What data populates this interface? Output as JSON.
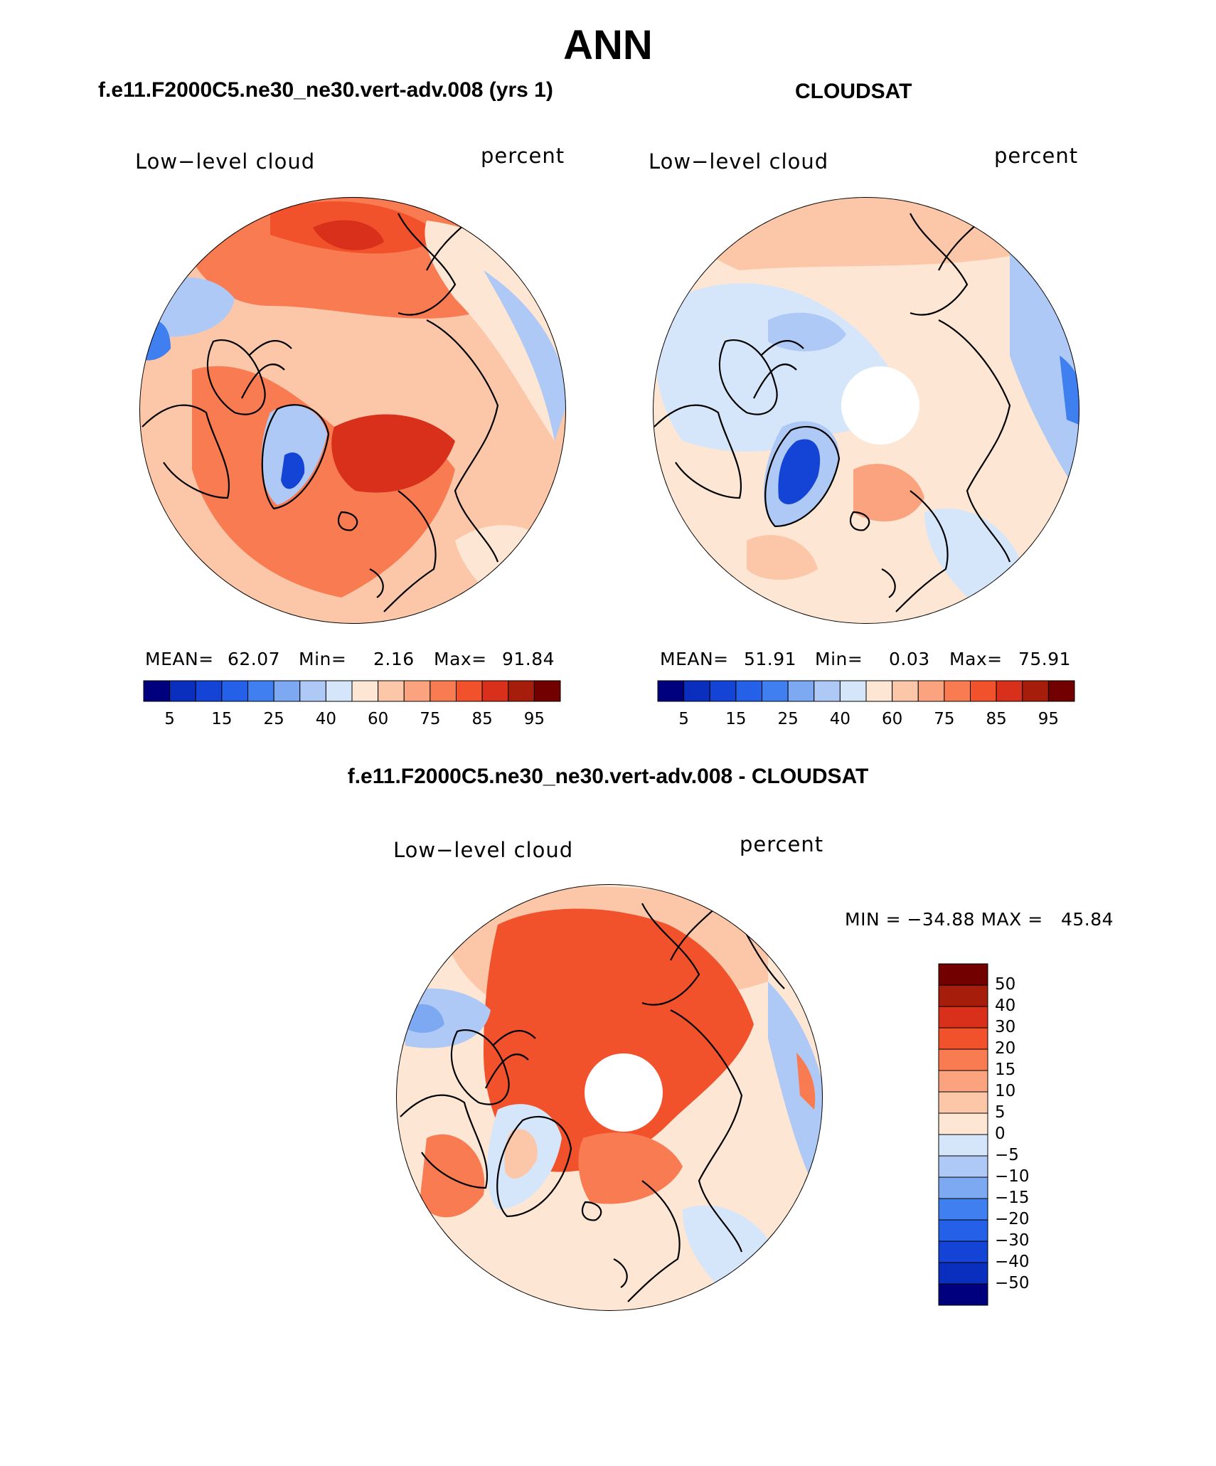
{
  "header": {
    "title": "ANN",
    "model_title": "f.e11.F2000C5.ne30_ne30.vert-adv.008 (yrs 1)",
    "obs_title": "CLOUDSAT",
    "diff_title": "f.e11.F2000C5.ne30_ne30.vert-adv.008 - CLOUDSAT"
  },
  "panels": {
    "model": {
      "variable": "Low−level cloud",
      "units": "percent",
      "mean_label": "MEAN=",
      "mean": "62.07",
      "min_label": "Min=",
      "min": "2.16",
      "max_label": "Max=",
      "max": "91.84"
    },
    "obs": {
      "variable": "Low−level cloud",
      "units": "percent",
      "mean_label": "MEAN=",
      "mean": "51.91",
      "min_label": "Min=",
      "min": "0.03",
      "max_label": "Max=",
      "max": "75.91"
    },
    "diff": {
      "variable": "Low−level cloud",
      "units": "percent",
      "minmax_text": "MIN = −34.88 MAX =   45.84"
    }
  },
  "chart_data": [
    {
      "type": "heatmap",
      "projection": "north-polar-stereographic",
      "title": "f.e11.F2000C5.ne30_ne30.vert-adv.008 (yrs 1)",
      "field": "Low-level cloud",
      "units": "percent",
      "mean": 62.07,
      "min": 2.16,
      "max": 91.84,
      "colorbar_levels": [
        5,
        10,
        15,
        20,
        25,
        30,
        40,
        50,
        60,
        65,
        75,
        80,
        85,
        90,
        95
      ],
      "colorbar_tick_labels": [
        "5",
        "15",
        "25",
        "40",
        "60",
        "75",
        "85",
        "95"
      ]
    },
    {
      "type": "heatmap",
      "projection": "north-polar-stereographic",
      "title": "CLOUDSAT",
      "field": "Low-level cloud",
      "units": "percent",
      "mean": 51.91,
      "min": 0.03,
      "max": 75.91,
      "colorbar_levels": [
        5,
        10,
        15,
        20,
        25,
        30,
        40,
        50,
        60,
        65,
        75,
        80,
        85,
        90,
        95
      ],
      "colorbar_tick_labels": [
        "5",
        "15",
        "25",
        "40",
        "60",
        "75",
        "85",
        "95"
      ]
    },
    {
      "type": "heatmap",
      "projection": "north-polar-stereographic",
      "title": "f.e11.F2000C5.ne30_ne30.vert-adv.008 - CLOUDSAT",
      "field": "Low-level cloud",
      "units": "percent",
      "min": -34.88,
      "max": 45.84,
      "colorbar_levels": [
        50,
        40,
        30,
        20,
        15,
        10,
        5,
        0,
        -5,
        -10,
        -15,
        -20,
        -30,
        -40,
        -50
      ],
      "colorbar_tick_labels": [
        "50",
        "40",
        "30",
        "20",
        "15",
        "10",
        "5",
        "0",
        "−5",
        "−10",
        "−15",
        "−20",
        "−30",
        "−40",
        "−50"
      ]
    }
  ],
  "palette": [
    "#00007f",
    "#0a2fbf",
    "#1444d6",
    "#2560e8",
    "#3f7ff0",
    "#7da9f3",
    "#aec9f5",
    "#d6e6fa",
    "#fde6d3",
    "#fcc7a9",
    "#fba37e",
    "#f87b52",
    "#f2522b",
    "#d8301b",
    "#a61d0c",
    "#730000"
  ]
}
